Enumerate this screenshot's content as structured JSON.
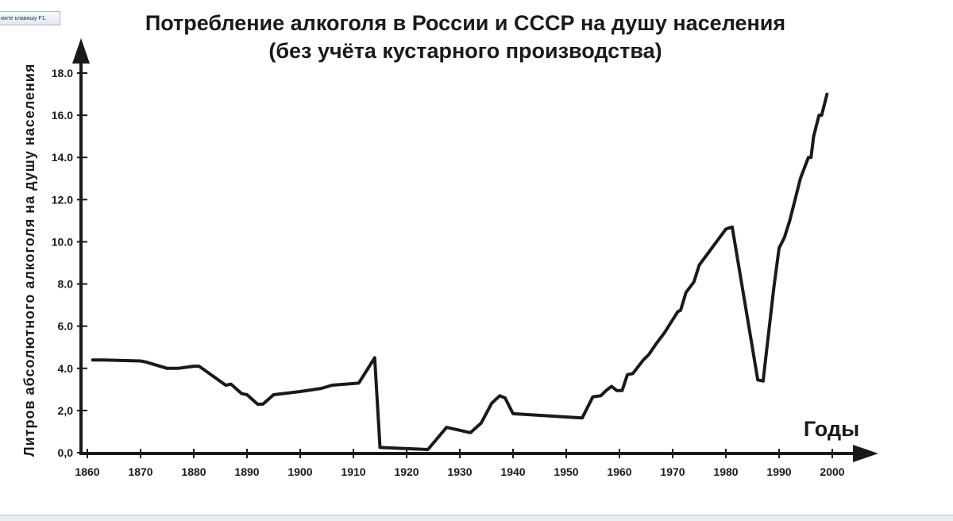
{
  "window": {
    "hint_text": "мите клавишу F1."
  },
  "chart_data": {
    "type": "line",
    "title_lines": [
      "Потребление алкоголя в России и СССР на душу населения",
      "(без учёта кустарного производства)"
    ],
    "xlabel": "Годы",
    "ylabel": "Литров абсолютного алкоголя на душу населения",
    "x_ticks": [
      1860,
      1870,
      1880,
      1890,
      1900,
      1910,
      1920,
      1930,
      1940,
      1950,
      1960,
      1970,
      1980,
      1990,
      2000
    ],
    "y_ticks": [
      "0,0",
      "2,0",
      "4.0",
      "6.0",
      "8.0",
      "10.0",
      "12.0",
      "14.0",
      "16.0",
      "18.0"
    ],
    "y_tick_values": [
      0,
      2,
      4,
      6,
      8,
      10,
      12,
      14,
      16,
      18
    ],
    "xlim": [
      1860,
      2000
    ],
    "ylim": [
      0,
      18
    ],
    "grid": false,
    "legend": "none",
    "line_color": "#1a1a1a",
    "series": [
      {
        "x": [
          1861,
          1863,
          1870,
          1871,
          1875,
          1877,
          1880,
          1881,
          1886,
          1887,
          1889,
          1890,
          1892,
          1893,
          1895,
          1900,
          1904,
          1906,
          1911,
          1914,
          1915,
          1924,
          1927.5,
          1932,
          1934,
          1936,
          1937.5,
          1938.5,
          1940,
          1953,
          1955,
          1956.5,
          1957.5,
          1958.5,
          1959.5,
          1960.5,
          1961.5,
          1962.5,
          1964.5,
          1965.5,
          1967,
          1968.5,
          1969.5,
          1971,
          1971.5,
          1972.5,
          1974,
          1975,
          1980,
          1980.5,
          1981.2,
          1986,
          1987,
          1989,
          1990,
          1991,
          1992,
          1993.5,
          1994,
          1995.5,
          1996,
          1996.5,
          1997,
          1997.5,
          1998,
          1998.5,
          1999
        ],
        "y": [
          4.4,
          4.4,
          4.35,
          4.3,
          4.0,
          4.0,
          4.1,
          4.1,
          3.2,
          3.25,
          2.8,
          2.75,
          2.3,
          2.3,
          2.75,
          2.9,
          3.05,
          3.2,
          3.3,
          4.5,
          0.25,
          0.15,
          1.2,
          0.95,
          1.4,
          2.35,
          2.7,
          2.6,
          1.85,
          1.65,
          2.65,
          2.7,
          2.95,
          3.15,
          2.95,
          2.95,
          3.7,
          3.75,
          4.4,
          4.65,
          5.2,
          5.7,
          6.1,
          6.7,
          6.75,
          7.6,
          8.1,
          8.9,
          10.6,
          10.65,
          10.7,
          3.45,
          3.4,
          7.8,
          9.7,
          10.2,
          11.0,
          12.5,
          13.0,
          14.0,
          14.0,
          15.0,
          15.5,
          16.0,
          16.0,
          16.5,
          17.0
        ]
      }
    ]
  }
}
